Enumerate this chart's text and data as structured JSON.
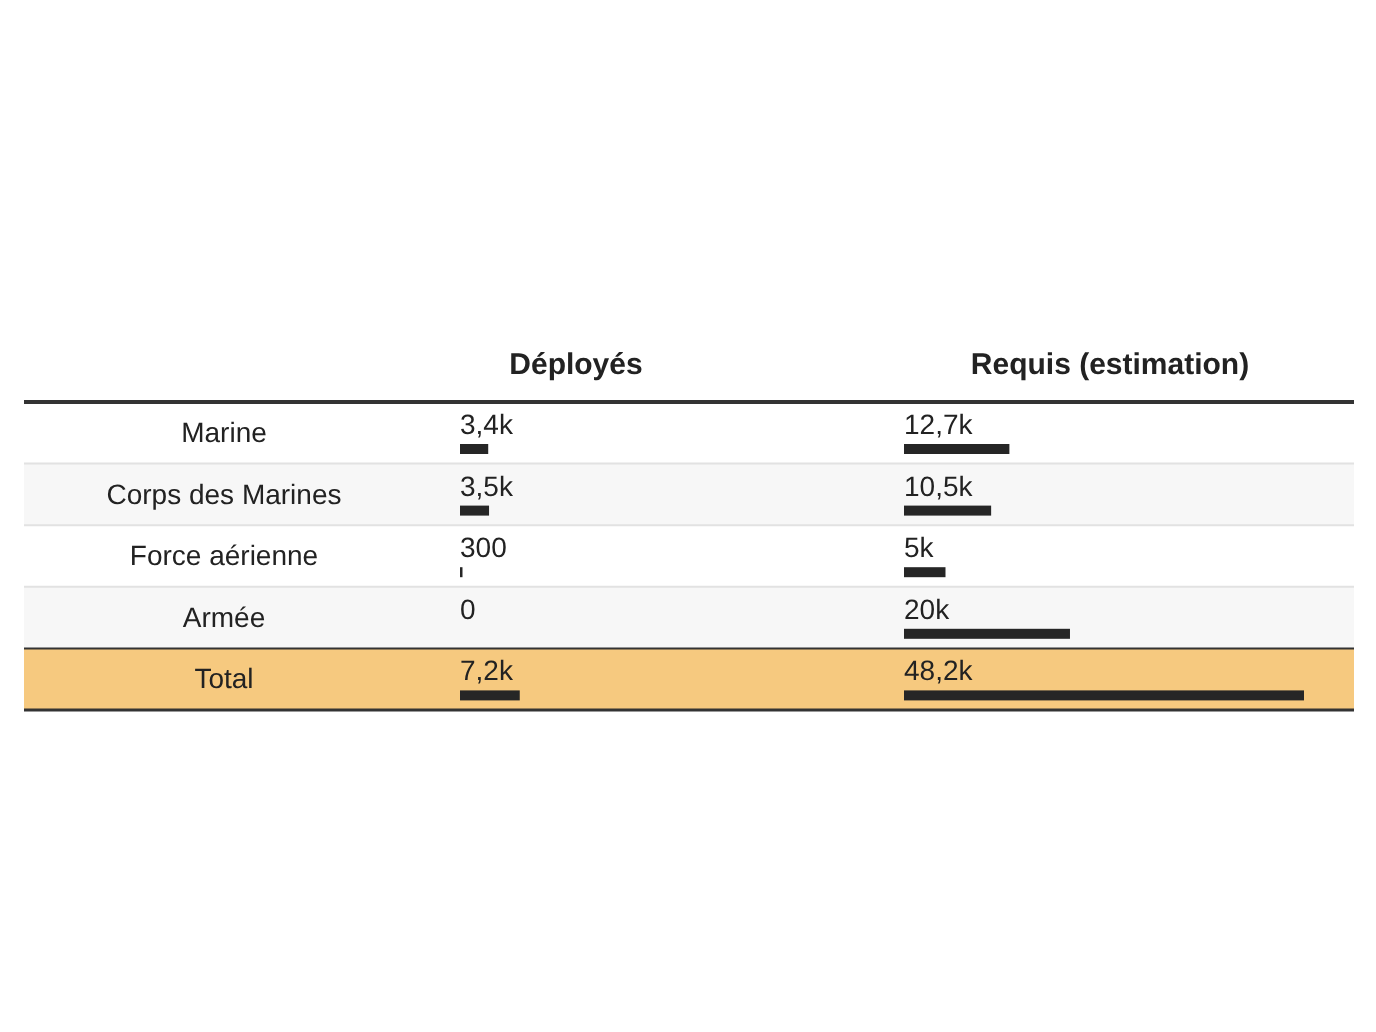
{
  "chart_data": [
    {
      "type": "bar",
      "orientation": "horizontal",
      "title": "Déployés",
      "categories": [
        "Marine",
        "Corps des Marines",
        "Force aérienne",
        "Armée",
        "Total"
      ],
      "series": [
        {
          "color": "#262626",
          "values": [
            3400,
            3500,
            300,
            0,
            7200
          ],
          "value_labels": [
            "3,4k",
            "3,5k",
            "300",
            "0",
            "7,2k"
          ]
        }
      ],
      "bands": [
        {
          "axis": "y",
          "from": "Corps des Marines",
          "to": "Corps des Marines",
          "color": "#f7f7f7"
        },
        {
          "axis": "y",
          "from": "Armée",
          "to": "Armée",
          "color": "#f7f7f7"
        },
        {
          "axis": "y",
          "from": "Total",
          "to": "Total",
          "color": "#f6c97f"
        }
      ]
    },
    {
      "type": "bar",
      "orientation": "horizontal",
      "title": "Requis (estimation)",
      "categories": [
        null,
        null,
        null,
        null,
        null
      ],
      "series": [
        {
          "color": "#262626",
          "values": [
            12700,
            10500,
            5000,
            20000,
            48200
          ],
          "value_labels": [
            "12,7k",
            "10,5k",
            "5k",
            "20k",
            "48,2k"
          ]
        }
      ]
    }
  ]
}
